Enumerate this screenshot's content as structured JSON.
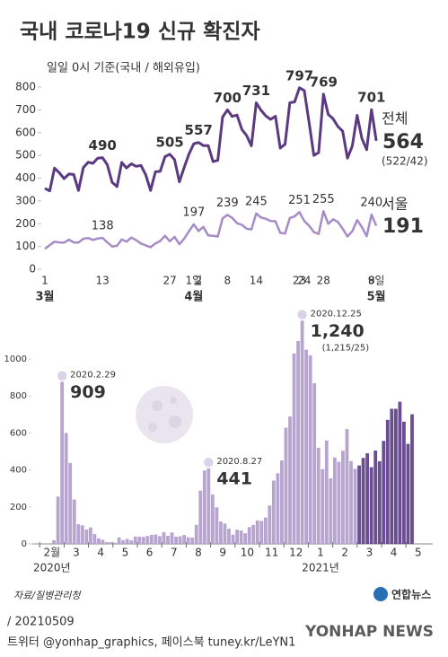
{
  "title": "국내 코로나19 신규 확진자",
  "chart_data": [
    {
      "type": "line",
      "subtitle": "일일 0시 기준(국내 / 해외유입)",
      "categories": [
        "1",
        null,
        null,
        null,
        null,
        null,
        null,
        null,
        null,
        null,
        null,
        null,
        "13",
        null,
        null,
        null,
        null,
        null,
        null,
        null,
        null,
        null,
        null,
        null,
        null,
        null,
        "27",
        null,
        null,
        null,
        null,
        "1일",
        "2",
        null,
        null,
        null,
        null,
        null,
        "8",
        null,
        null,
        null,
        null,
        null,
        "14",
        null,
        null,
        null,
        null,
        null,
        null,
        null,
        null,
        "23",
        "24",
        null,
        null,
        null,
        "28",
        null,
        null,
        null,
        null,
        null,
        null,
        null,
        null,
        null,
        "8",
        "9일"
      ],
      "months": [
        "3월",
        null,
        null,
        null,
        null,
        null,
        null,
        null,
        null,
        null,
        null,
        null,
        null,
        null,
        null,
        null,
        null,
        null,
        null,
        null,
        null,
        null,
        null,
        null,
        null,
        null,
        null,
        null,
        null,
        null,
        null,
        "4월",
        null,
        null,
        null,
        null,
        null,
        null,
        null,
        null,
        null,
        null,
        null,
        null,
        null,
        null,
        null,
        null,
        null,
        null,
        null,
        null,
        null,
        null,
        null,
        null,
        null,
        null,
        null,
        null,
        null,
        null,
        null,
        null,
        null,
        null,
        null,
        null,
        null,
        "5월"
      ],
      "ylim": [
        0,
        800
      ],
      "yticks": [
        0,
        100,
        200,
        300,
        400,
        500,
        600,
        700,
        800
      ],
      "series": [
        {
          "name": "전체",
          "color": "#5b3a80",
          "detail": "(522/42)",
          "values": [
            355,
            344,
            444,
            424,
            398,
            418,
            416,
            346,
            446,
            470,
            465,
            488,
            490,
            459,
            382,
            363,
            469,
            445,
            463,
            452,
            456,
            415,
            346,
            428,
            430,
            494,
            505,
            482,
            384,
            447,
            506,
            551,
            557,
            543,
            543,
            473,
            478,
            668,
            700,
            671,
            677,
            614,
            587,
            542,
            731,
            698,
            673,
            658,
            672,
            532,
            549,
            731,
            735,
            797,
            785,
            644,
            500,
            512,
            769,
            680,
            661,
            627,
            606,
            488,
            541,
            676,
            574,
            525,
            701,
            564
          ],
          "value_labels": [
            null,
            null,
            null,
            null,
            null,
            null,
            null,
            null,
            null,
            null,
            null,
            null,
            "490",
            null,
            null,
            null,
            null,
            null,
            null,
            null,
            null,
            null,
            null,
            null,
            null,
            null,
            "505",
            null,
            null,
            null,
            null,
            null,
            "557",
            null,
            null,
            null,
            null,
            null,
            "700",
            null,
            null,
            null,
            null,
            null,
            "731",
            null,
            null,
            null,
            null,
            null,
            null,
            null,
            null,
            "797",
            null,
            null,
            null,
            null,
            "769",
            null,
            null,
            null,
            null,
            null,
            null,
            null,
            null,
            null,
            "701",
            null
          ]
        },
        {
          "name": "서울",
          "color": "#a68cc4",
          "values": [
            90,
            106,
            121,
            118,
            117,
            130,
            118,
            117,
            134,
            137,
            129,
            135,
            138,
            118,
            100,
            103,
            131,
            121,
            139,
            128,
            113,
            105,
            97,
            113,
            124,
            147,
            123,
            142,
            110,
            134,
            167,
            197,
            168,
            186,
            149,
            147,
            144,
            223,
            239,
            226,
            202,
            195,
            178,
            175,
            245,
            227,
            222,
            212,
            211,
            160,
            157,
            225,
            232,
            251,
            212,
            191,
            163,
            155,
            255,
            200,
            219,
            208,
            178,
            144,
            167,
            216,
            185,
            145,
            240,
            191
          ],
          "value_labels": [
            null,
            null,
            null,
            null,
            null,
            null,
            null,
            null,
            null,
            null,
            null,
            null,
            "138",
            null,
            null,
            null,
            null,
            null,
            null,
            null,
            null,
            null,
            null,
            null,
            null,
            null,
            null,
            null,
            null,
            null,
            null,
            "197",
            null,
            null,
            null,
            null,
            null,
            null,
            "239",
            null,
            null,
            null,
            null,
            null,
            "245",
            null,
            null,
            null,
            null,
            null,
            null,
            null,
            null,
            "251",
            null,
            null,
            null,
            null,
            "255",
            null,
            null,
            null,
            null,
            null,
            null,
            null,
            null,
            null,
            "240",
            null
          ]
        }
      ]
    },
    {
      "type": "bar",
      "categories": [
        null,
        "2월",
        "3",
        "4",
        "5",
        "6",
        "7",
        "8",
        "9",
        "10",
        "11",
        "12",
        "1",
        "2",
        "3",
        "4",
        "5"
      ],
      "years": [
        null,
        "2020년",
        null,
        null,
        null,
        null,
        null,
        null,
        null,
        null,
        null,
        null,
        "2021년",
        null,
        null,
        null,
        null
      ],
      "colors": [
        "#b8a5cf",
        "#b8a5cf",
        "#b8a5cf",
        "#b8a5cf",
        "#b8a5cf",
        "#b8a5cf",
        "#b8a5cf",
        "#b8a5cf",
        "#b8a5cf",
        "#b8a5cf",
        "#b8a5cf",
        "#b8a5cf",
        "#b8a5cf",
        "#b8a5cf",
        "#6b4d92",
        "#6b4d92",
        "#6b4d92"
      ],
      "ylim": [
        0,
        1000
      ],
      "yticks": [
        0,
        200,
        400,
        600,
        800,
        1000
      ],
      "values": [
        [
          0,
          0,
          0,
          1,
          2,
          3
        ],
        [
          0,
          1,
          0,
          20,
          256,
          909
        ],
        [
          600,
          438,
          240,
          107,
          100,
          78
        ],
        [
          89,
          53,
          30,
          22,
          10,
          9
        ],
        [
          6,
          35,
          20,
          27,
          19,
          40
        ],
        [
          39,
          38,
          43,
          49,
          51,
          42
        ],
        [
          63,
          44,
          62,
          39,
          41,
          48
        ],
        [
          36,
          34,
          103,
          288,
          397,
          441
        ],
        [
          267,
          198,
          121,
          110,
          82,
          50
        ],
        [
          77,
          72,
          58,
          91,
          103,
          127
        ],
        [
          124,
          143,
          208,
          343,
          382,
          451
        ],
        [
          629,
          689,
          1030,
          1097,
          1240,
          1050
        ],
        [
          1020,
          869,
          520,
          404,
          559,
          355
        ],
        [
          467,
          444,
          504,
          621,
          448,
          406
        ],
        [
          424,
          465,
          490,
          415,
          505,
          447
        ],
        [
          557,
          671,
          731,
          731,
          769,
          661
        ],
        [
          541,
          701
        ]
      ],
      "value_labels": [
        null,
        [
          null,
          null,
          null,
          null,
          null,
          "909"
        ],
        null,
        null,
        null,
        null,
        null,
        [
          null,
          null,
          null,
          null,
          null,
          "441"
        ],
        null,
        null,
        null,
        [
          null,
          null,
          null,
          null,
          "1,240",
          null
        ],
        null,
        null,
        null,
        null,
        null
      ],
      "date_labels": [
        null,
        [
          null,
          null,
          null,
          null,
          null,
          "2020.2.29"
        ],
        null,
        null,
        null,
        null,
        null,
        [
          null,
          null,
          null,
          null,
          null,
          "2020.8.27"
        ],
        null,
        null,
        null,
        [
          null,
          null,
          null,
          null,
          "2020.12.25",
          null
        ],
        null,
        null,
        null,
        null,
        null
      ],
      "detail_labels": [
        null,
        null,
        null,
        null,
        null,
        null,
        null,
        null,
        null,
        null,
        null,
        [
          null,
          null,
          null,
          null,
          "(1,215/25)",
          null
        ],
        null,
        null,
        null,
        null,
        null
      ]
    }
  ],
  "source": "자료/질병관리청",
  "logo": "연합뉴스",
  "date": "/ 20210509",
  "social": "트위터 @yonhap_graphics, 페이스북 tuney.kr/LeYN1",
  "watermark": "YONHAP NEWS"
}
